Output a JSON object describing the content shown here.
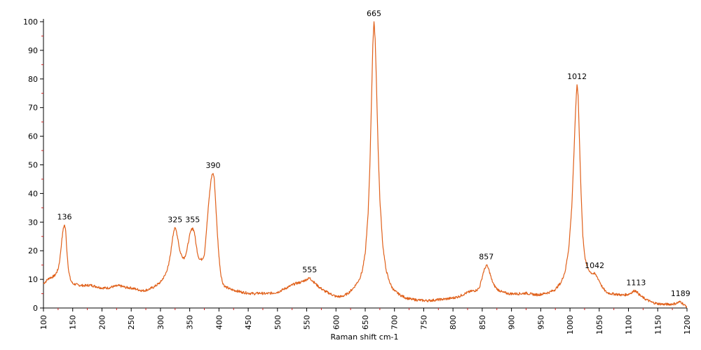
{
  "chart_data": {
    "type": "line",
    "title": "",
    "xlabel": "Raman shift cm-1",
    "ylabel": "",
    "xlim": [
      100,
      1200
    ],
    "ylim": [
      0,
      100
    ],
    "x_ticks": [
      100,
      150,
      200,
      250,
      300,
      350,
      400,
      450,
      500,
      550,
      600,
      650,
      700,
      750,
      800,
      850,
      900,
      950,
      1000,
      1050,
      1100,
      1150,
      1200
    ],
    "y_ticks": [
      0,
      10,
      20,
      30,
      40,
      50,
      60,
      70,
      80,
      90,
      100
    ],
    "grid": false,
    "legend": "none",
    "colors": {
      "line": "#e0601a",
      "axis": "#000000",
      "minor_tick": "#cc2222"
    },
    "series": [
      {
        "points": [
          [
            100,
            8.5
          ],
          [
            105,
            9.5
          ],
          [
            110,
            10.5
          ],
          [
            115,
            10.8
          ],
          [
            120,
            11.5
          ],
          [
            125,
            13.5
          ],
          [
            128,
            17.0
          ],
          [
            131,
            23.0
          ],
          [
            134,
            28.0
          ],
          [
            136,
            29.0
          ],
          [
            138,
            27.0
          ],
          [
            140,
            20.0
          ],
          [
            143,
            13.0
          ],
          [
            146,
            10.0
          ],
          [
            150,
            8.5
          ],
          [
            160,
            8.0
          ],
          [
            170,
            7.8
          ],
          [
            180,
            8.0
          ],
          [
            190,
            7.5
          ],
          [
            200,
            7.0
          ],
          [
            210,
            7.0
          ],
          [
            220,
            7.5
          ],
          [
            230,
            7.8
          ],
          [
            240,
            7.2
          ],
          [
            250,
            7.0
          ],
          [
            260,
            6.5
          ],
          [
            270,
            6.0
          ],
          [
            280,
            6.5
          ],
          [
            290,
            7.5
          ],
          [
            300,
            9.0
          ],
          [
            308,
            11.5
          ],
          [
            314,
            15.0
          ],
          [
            318,
            20.0
          ],
          [
            321,
            25.0
          ],
          [
            323,
            27.0
          ],
          [
            325,
            28.0
          ],
          [
            327,
            27.0
          ],
          [
            330,
            24.0
          ],
          [
            333,
            20.0
          ],
          [
            337,
            18.0
          ],
          [
            341,
            17.5
          ],
          [
            345,
            20.0
          ],
          [
            349,
            24.5
          ],
          [
            352,
            27.0
          ],
          [
            355,
            28.0
          ],
          [
            358,
            26.5
          ],
          [
            361,
            22.0
          ],
          [
            364,
            18.5
          ],
          [
            367,
            17.0
          ],
          [
            371,
            17.0
          ],
          [
            375,
            18.5
          ],
          [
            379,
            28.0
          ],
          [
            383,
            38.0
          ],
          [
            386,
            44.0
          ],
          [
            388,
            46.5
          ],
          [
            390,
            47.0
          ],
          [
            392,
            45.0
          ],
          [
            394,
            38.0
          ],
          [
            397,
            27.0
          ],
          [
            400,
            18.0
          ],
          [
            403,
            12.0
          ],
          [
            406,
            9.0
          ],
          [
            410,
            7.5
          ],
          [
            420,
            6.5
          ],
          [
            430,
            6.0
          ],
          [
            440,
            5.5
          ],
          [
            450,
            5.2
          ],
          [
            460,
            5.0
          ],
          [
            470,
            5.2
          ],
          [
            480,
            5.0
          ],
          [
            490,
            5.2
          ],
          [
            500,
            5.5
          ],
          [
            510,
            6.5
          ],
          [
            520,
            7.5
          ],
          [
            530,
            8.5
          ],
          [
            540,
            9.0
          ],
          [
            550,
            10.0
          ],
          [
            555,
            10.5
          ],
          [
            560,
            9.5
          ],
          [
            565,
            8.5
          ],
          [
            570,
            7.5
          ],
          [
            580,
            6.0
          ],
          [
            590,
            5.0
          ],
          [
            600,
            4.0
          ],
          [
            610,
            4.0
          ],
          [
            620,
            5.0
          ],
          [
            630,
            7.0
          ],
          [
            640,
            10.0
          ],
          [
            645,
            13.0
          ],
          [
            650,
            19.0
          ],
          [
            655,
            33.0
          ],
          [
            658,
            50.0
          ],
          [
            661,
            75.0
          ],
          [
            663,
            92.0
          ],
          [
            665,
            100.0
          ],
          [
            667,
            94.0
          ],
          [
            669,
            80.0
          ],
          [
            672,
            56.0
          ],
          [
            675,
            38.0
          ],
          [
            680,
            22.0
          ],
          [
            685,
            14.0
          ],
          [
            690,
            10.0
          ],
          [
            695,
            7.5
          ],
          [
            700,
            6.0
          ],
          [
            710,
            4.5
          ],
          [
            720,
            3.5
          ],
          [
            730,
            3.0
          ],
          [
            740,
            2.8
          ],
          [
            750,
            2.6
          ],
          [
            760,
            2.6
          ],
          [
            770,
            2.8
          ],
          [
            780,
            3.0
          ],
          [
            790,
            3.2
          ],
          [
            800,
            3.5
          ],
          [
            810,
            4.0
          ],
          [
            820,
            5.0
          ],
          [
            830,
            5.8
          ],
          [
            840,
            6.2
          ],
          [
            845,
            7.0
          ],
          [
            849,
            10.0
          ],
          [
            852,
            12.5
          ],
          [
            855,
            14.0
          ],
          [
            857,
            15.0
          ],
          [
            859,
            14.5
          ],
          [
            862,
            13.0
          ],
          [
            866,
            10.0
          ],
          [
            870,
            8.0
          ],
          [
            876,
            6.5
          ],
          [
            885,
            5.5
          ],
          [
            895,
            5.0
          ],
          [
            905,
            5.0
          ],
          [
            915,
            5.0
          ],
          [
            925,
            5.2
          ],
          [
            935,
            4.8
          ],
          [
            945,
            4.6
          ],
          [
            955,
            5.0
          ],
          [
            965,
            5.5
          ],
          [
            975,
            6.5
          ],
          [
            985,
            9.0
          ],
          [
            992,
            13.0
          ],
          [
            998,
            21.0
          ],
          [
            1003,
            35.0
          ],
          [
            1007,
            55.0
          ],
          [
            1009,
            66.0
          ],
          [
            1011,
            75.0
          ],
          [
            1012,
            78.0
          ],
          [
            1014,
            74.0
          ],
          [
            1016,
            60.0
          ],
          [
            1019,
            40.0
          ],
          [
            1022,
            25.0
          ],
          [
            1026,
            17.0
          ],
          [
            1030,
            14.0
          ],
          [
            1035,
            12.5
          ],
          [
            1039,
            12.0
          ],
          [
            1042,
            12.0
          ],
          [
            1046,
            11.0
          ],
          [
            1050,
            9.5
          ],
          [
            1056,
            7.0
          ],
          [
            1062,
            5.5
          ],
          [
            1070,
            5.0
          ],
          [
            1080,
            4.8
          ],
          [
            1090,
            4.5
          ],
          [
            1100,
            4.8
          ],
          [
            1106,
            5.5
          ],
          [
            1110,
            6.0
          ],
          [
            1113,
            6.0
          ],
          [
            1117,
            5.0
          ],
          [
            1122,
            4.0
          ],
          [
            1130,
            3.0
          ],
          [
            1140,
            2.0
          ],
          [
            1150,
            1.5
          ],
          [
            1160,
            1.3
          ],
          [
            1170,
            1.3
          ],
          [
            1180,
            1.5
          ],
          [
            1186,
            2.0
          ],
          [
            1189,
            2.2
          ],
          [
            1193,
            1.5
          ],
          [
            1197,
            0.8
          ],
          [
            1200,
            0.5
          ]
        ]
      }
    ],
    "annotations": [
      {
        "text": "136",
        "x": 136,
        "y": 29
      },
      {
        "text": "325",
        "x": 325,
        "y": 28
      },
      {
        "text": "355",
        "x": 355,
        "y": 28
      },
      {
        "text": "390",
        "x": 390,
        "y": 47
      },
      {
        "text": "555",
        "x": 555,
        "y": 10.5
      },
      {
        "text": "665",
        "x": 665,
        "y": 100
      },
      {
        "text": "857",
        "x": 857,
        "y": 15
      },
      {
        "text": "1012",
        "x": 1012,
        "y": 78
      },
      {
        "text": "1042",
        "x": 1042,
        "y": 12
      },
      {
        "text": "1113",
        "x": 1113,
        "y": 6
      },
      {
        "text": "1189",
        "x": 1189,
        "y": 2.2
      }
    ]
  }
}
